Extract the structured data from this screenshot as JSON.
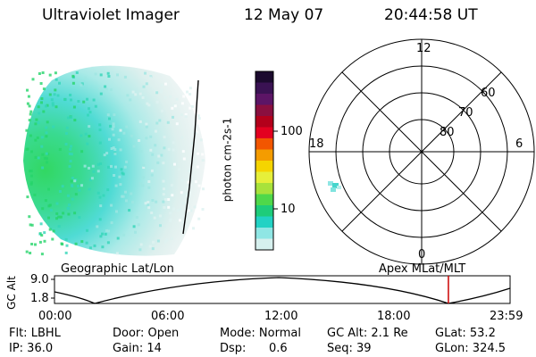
{
  "header": {
    "instrument": "Ultraviolet Imager",
    "date": "12 May 07",
    "time": "20:44:58 UT"
  },
  "colorbar": {
    "unit": "photon cm-2s-1",
    "ticks": [
      "100",
      "10"
    ],
    "colors": [
      "#1b0a2e",
      "#3a1253",
      "#5c1566",
      "#8a0f3f",
      "#b3001b",
      "#e30020",
      "#f25600",
      "#f49c00",
      "#f5d400",
      "#e6ef3a",
      "#a8e23b",
      "#4fd84a",
      "#1ecc7a",
      "#22d2c4",
      "#8fe6e4",
      "#d6f0ee"
    ]
  },
  "polar_plot": {
    "mlt_labels": [
      "12",
      "18",
      "6",
      "0"
    ],
    "lat_labels": [
      "60",
      "70",
      "80"
    ]
  },
  "timeline": {
    "yaxis_title": "GC Alt",
    "ytick_top": "9.0",
    "ytick_bottom": "1.8",
    "left_title": "Geographic Lat/Lon",
    "right_title": "Apex MLat/MLT",
    "xticks": [
      "00:00",
      "06:00",
      "12:00",
      "18:00",
      "23:59"
    ],
    "current_time_fraction": 0.8646
  },
  "footer": {
    "row1": {
      "filter": "Flt: LBHL",
      "door": "Door: Open",
      "mode": "Mode: Normal",
      "gc_alt": "GC Alt: 2.1 Re",
      "glat": "GLat:  53.2"
    },
    "row2": {
      "ip": "IP: 36.0",
      "gain": "Gain: 14",
      "dsp_label": "Dsp:",
      "dsp_value": "0.6",
      "seq": "Seq: 39",
      "glon": "GLon: 324.5"
    }
  },
  "colors": {
    "marker": "#cc0000",
    "glow_green": "#2fd66a",
    "glow_cyan": "#3fd8d0"
  }
}
